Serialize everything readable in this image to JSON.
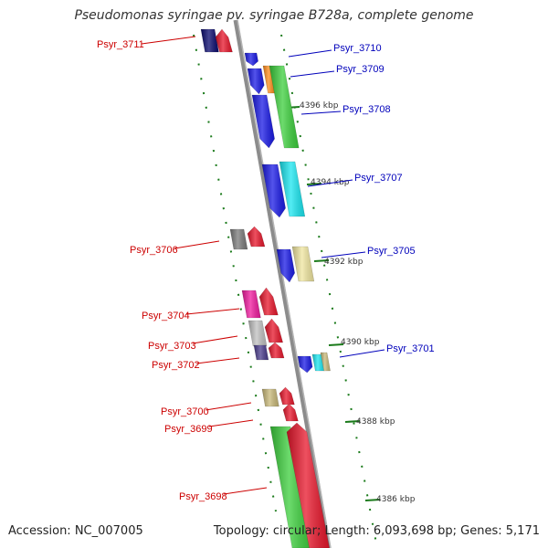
{
  "header": {
    "title": "Pseudomonas syringae pv. syringae B728a, complete genome"
  },
  "footer": {
    "accession": "Accession: NC_007005",
    "summary": "Topology: circular; Length: 6,093,698 bp; Genes: 5,171"
  },
  "colors": {
    "reverse_label": "#cc0000",
    "forward_label": "#0000bb",
    "axis": "#888888",
    "tick": "#1a7a1a"
  },
  "scale": {
    "tick_labels": [
      "4396 kbp",
      "4394 kbp",
      "4392 kbp",
      "4390 kbp",
      "4388 kbp",
      "4386 kbp"
    ]
  },
  "genes": [
    {
      "name": "Psyr_3711",
      "strand": "reverse",
      "color": "#e8162b"
    },
    {
      "name": "Psyr_3710",
      "strand": "forward",
      "color": "#1a1ae6"
    },
    {
      "name": "Psyr_3709",
      "strand": "forward",
      "color": "#ff8c1a"
    },
    {
      "name": "Psyr_3708",
      "strand": "forward",
      "color": "#3ccf3c"
    },
    {
      "name": "Psyr_3707",
      "strand": "forward",
      "color": "#1ae6f0"
    },
    {
      "name": "Psyr_3706",
      "strand": "reverse",
      "color": "#7a7a7a"
    },
    {
      "name": "Psyr_3705",
      "strand": "forward",
      "color": "#f0e6a0"
    },
    {
      "name": "Psyr_3704",
      "strand": "reverse",
      "color": "#f01a9e"
    },
    {
      "name": "Psyr_3703",
      "strand": "reverse",
      "color": "#c0c0c0"
    },
    {
      "name": "Psyr_3702",
      "strand": "reverse",
      "color": "#4a3c8c"
    },
    {
      "name": "Psyr_3701",
      "strand": "forward",
      "color": "#1a1ae6"
    },
    {
      "name": "Psyr_3700",
      "strand": "reverse",
      "color": "#c8b878"
    },
    {
      "name": "Psyr_3699",
      "strand": "reverse",
      "color": "#e8162b"
    },
    {
      "name": "Psyr_3698",
      "strand": "reverse",
      "color": "#3ccf3c"
    }
  ]
}
